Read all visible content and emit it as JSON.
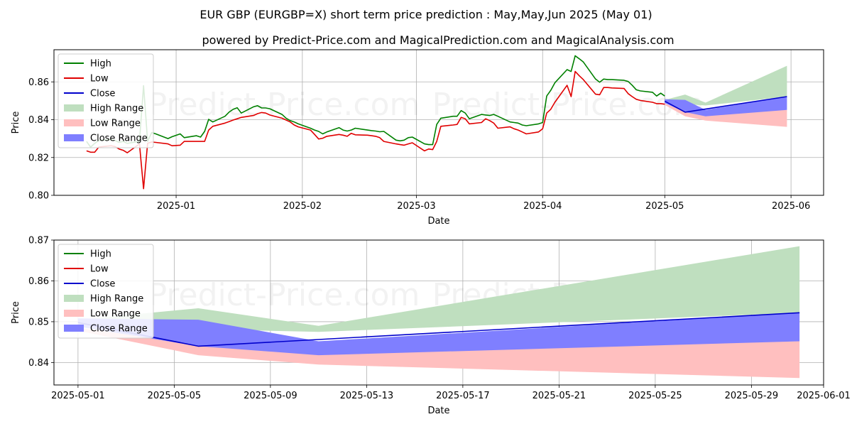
{
  "title": "EUR GBP (EURGBP=X) short term price prediction : May,May,Jun 2025 (May 01)",
  "subtitle": "powered by Predict-Price.com and MagicalPrediction.com and MagicalAnalysis.com",
  "watermark": "Predict-Price.com",
  "colors": {
    "high": "#008000",
    "low": "#e00000",
    "close": "#0000cc",
    "high_range": "#bfdfbf",
    "low_range": "#ffbfbf",
    "close_range": "#7f7fff",
    "grid": "#b0b0b0"
  },
  "legend": [
    "High",
    "Low",
    "Close",
    "High Range",
    "Low Range",
    "Close Range"
  ],
  "chart_data": [
    {
      "type": "line",
      "xlabel": "Date",
      "ylabel": "Price",
      "ylim": [
        0.8,
        0.877
      ],
      "xlim": [
        "2024-12-02",
        "2025-06-09"
      ],
      "yticks": [
        "0.80",
        "0.82",
        "0.84",
        "0.86"
      ],
      "xticks": [
        "2025-01",
        "2025-02",
        "2025-03",
        "2025-04",
        "2025-05",
        "2025-06"
      ],
      "legend_position": "top-left",
      "grid": true,
      "series": [
        {
          "name": "High",
          "x": [
            "2024-12-10",
            "2024-12-11",
            "2024-12-12",
            "2024-12-13",
            "2024-12-16",
            "2024-12-17",
            "2024-12-18",
            "2024-12-19",
            "2024-12-20",
            "2024-12-23",
            "2024-12-24",
            "2024-12-25",
            "2024-12-26",
            "2024-12-27",
            "2024-12-30",
            "2024-12-31",
            "2025-01-02",
            "2025-01-03",
            "2025-01-06",
            "2025-01-07",
            "2025-01-08",
            "2025-01-09",
            "2025-01-10",
            "2025-01-13",
            "2025-01-14",
            "2025-01-15",
            "2025-01-16",
            "2025-01-17",
            "2025-01-20",
            "2025-01-21",
            "2025-01-22",
            "2025-01-23",
            "2025-01-24",
            "2025-01-27",
            "2025-01-28",
            "2025-01-29",
            "2025-01-30",
            "2025-01-31",
            "2025-02-03",
            "2025-02-04",
            "2025-02-05",
            "2025-02-06",
            "2025-02-07",
            "2025-02-10",
            "2025-02-11",
            "2025-02-12",
            "2025-02-13",
            "2025-02-14",
            "2025-02-17",
            "2025-02-18",
            "2025-02-19",
            "2025-02-20",
            "2025-02-21",
            "2025-02-24",
            "2025-02-25",
            "2025-02-26",
            "2025-02-27",
            "2025-02-28",
            "2025-03-03",
            "2025-03-04",
            "2025-03-05",
            "2025-03-06",
            "2025-03-07",
            "2025-03-10",
            "2025-03-11",
            "2025-03-12",
            "2025-03-13",
            "2025-03-14",
            "2025-03-17",
            "2025-03-18",
            "2025-03-19",
            "2025-03-20",
            "2025-03-21",
            "2025-03-24",
            "2025-03-25",
            "2025-03-26",
            "2025-03-27",
            "2025-03-28",
            "2025-03-31",
            "2025-04-01",
            "2025-04-02",
            "2025-04-03",
            "2025-04-04",
            "2025-04-07",
            "2025-04-08",
            "2025-04-09",
            "2025-04-10",
            "2025-04-11",
            "2025-04-14",
            "2025-04-15",
            "2025-04-16",
            "2025-04-17",
            "2025-04-18",
            "2025-04-21",
            "2025-04-22",
            "2025-04-23",
            "2025-04-24",
            "2025-04-25",
            "2025-04-28",
            "2025-04-29",
            "2025-04-30",
            "2025-05-01"
          ],
          "values": [
            0.8285,
            0.8255,
            0.8275,
            0.829,
            0.8295,
            0.829,
            0.828,
            0.8285,
            0.8275,
            0.8285,
            0.858,
            0.8285,
            0.8332,
            0.8325,
            0.83,
            0.831,
            0.8325,
            0.8305,
            0.8315,
            0.8308,
            0.8338,
            0.8402,
            0.8388,
            0.8418,
            0.844,
            0.8455,
            0.8463,
            0.8435,
            0.8468,
            0.8474,
            0.8462,
            0.8462,
            0.8458,
            0.8428,
            0.8408,
            0.8395,
            0.8388,
            0.8378,
            0.8355,
            0.8345,
            0.8338,
            0.8325,
            0.8335,
            0.8358,
            0.8345,
            0.834,
            0.8345,
            0.8355,
            0.8345,
            0.8342,
            0.834,
            0.8336,
            0.8338,
            0.8292,
            0.8288,
            0.8292,
            0.8305,
            0.8308,
            0.8272,
            0.8268,
            0.8268,
            0.8375,
            0.8408,
            0.8418,
            0.8418,
            0.8448,
            0.8435,
            0.8405,
            0.8428,
            0.8425,
            0.8422,
            0.8428,
            0.8418,
            0.8388,
            0.8385,
            0.8382,
            0.8372,
            0.8368,
            0.8378,
            0.8385,
            0.8525,
            0.8555,
            0.8595,
            0.8665,
            0.8655,
            0.8738,
            0.8722,
            0.8705,
            0.8615,
            0.8598,
            0.8615,
            0.8612,
            0.8612,
            0.8608,
            0.8602,
            0.8582,
            0.8558,
            0.8552,
            0.8545,
            0.8525,
            0.854,
            0.8525
          ]
        },
        {
          "name": "Low",
          "x": [
            "2024-12-10",
            "2024-12-11",
            "2024-12-12",
            "2024-12-13",
            "2024-12-16",
            "2024-12-17",
            "2024-12-18",
            "2024-12-19",
            "2024-12-20",
            "2024-12-23",
            "2024-12-24",
            "2024-12-25",
            "2024-12-26",
            "2024-12-27",
            "2024-12-30",
            "2024-12-31",
            "2025-01-02",
            "2025-01-03",
            "2025-01-06",
            "2025-01-07",
            "2025-01-08",
            "2025-01-09",
            "2025-01-10",
            "2025-01-13",
            "2025-01-14",
            "2025-01-15",
            "2025-01-16",
            "2025-01-17",
            "2025-01-20",
            "2025-01-21",
            "2025-01-22",
            "2025-01-23",
            "2025-01-24",
            "2025-01-27",
            "2025-01-28",
            "2025-01-29",
            "2025-01-30",
            "2025-01-31",
            "2025-02-03",
            "2025-02-04",
            "2025-02-05",
            "2025-02-06",
            "2025-02-07",
            "2025-02-10",
            "2025-02-11",
            "2025-02-12",
            "2025-02-13",
            "2025-02-14",
            "2025-02-17",
            "2025-02-18",
            "2025-02-19",
            "2025-02-20",
            "2025-02-21",
            "2025-02-24",
            "2025-02-25",
            "2025-02-26",
            "2025-02-27",
            "2025-02-28",
            "2025-03-03",
            "2025-03-04",
            "2025-03-05",
            "2025-03-06",
            "2025-03-07",
            "2025-03-10",
            "2025-03-11",
            "2025-03-12",
            "2025-03-13",
            "2025-03-14",
            "2025-03-17",
            "2025-03-18",
            "2025-03-19",
            "2025-03-20",
            "2025-03-21",
            "2025-03-24",
            "2025-03-25",
            "2025-03-26",
            "2025-03-27",
            "2025-03-28",
            "2025-03-31",
            "2025-04-01",
            "2025-04-02",
            "2025-04-03",
            "2025-04-04",
            "2025-04-07",
            "2025-04-08",
            "2025-04-09",
            "2025-04-10",
            "2025-04-11",
            "2025-04-14",
            "2025-04-15",
            "2025-04-16",
            "2025-04-17",
            "2025-04-18",
            "2025-04-21",
            "2025-04-22",
            "2025-04-23",
            "2025-04-24",
            "2025-04-25",
            "2025-04-28",
            "2025-04-29",
            "2025-04-30",
            "2025-05-01"
          ],
          "values": [
            0.8235,
            0.8228,
            0.8228,
            0.8255,
            0.8262,
            0.8258,
            0.8245,
            0.8238,
            0.8225,
            0.8272,
            0.8035,
            0.8275,
            0.8282,
            0.828,
            0.8272,
            0.8262,
            0.8265,
            0.8285,
            0.8285,
            0.8285,
            0.8285,
            0.8345,
            0.8365,
            0.8382,
            0.839,
            0.8398,
            0.8405,
            0.8412,
            0.8422,
            0.8432,
            0.8438,
            0.8435,
            0.8425,
            0.8408,
            0.8398,
            0.8388,
            0.8372,
            0.8362,
            0.8345,
            0.8322,
            0.8298,
            0.8302,
            0.8312,
            0.8322,
            0.8318,
            0.8312,
            0.8328,
            0.832,
            0.8318,
            0.8315,
            0.8312,
            0.8305,
            0.8285,
            0.8272,
            0.8268,
            0.8265,
            0.8272,
            0.8278,
            0.8235,
            0.8245,
            0.8242,
            0.8285,
            0.8365,
            0.8372,
            0.8375,
            0.8412,
            0.8405,
            0.8378,
            0.8385,
            0.8405,
            0.8395,
            0.8382,
            0.8355,
            0.8362,
            0.8352,
            0.8345,
            0.8335,
            0.8325,
            0.8335,
            0.8352,
            0.8435,
            0.8455,
            0.8492,
            0.8582,
            0.8522,
            0.8655,
            0.8632,
            0.8612,
            0.8535,
            0.8532,
            0.857,
            0.857,
            0.8568,
            0.8565,
            0.8538,
            0.8522,
            0.8508,
            0.8502,
            0.8492,
            0.8485,
            0.8485,
            0.8482
          ]
        },
        {
          "name": "High Range",
          "kind": "band",
          "x": [
            "2025-05-01",
            "2025-05-06",
            "2025-05-11",
            "2025-05-31"
          ],
          "upper": [
            0.8505,
            0.8533,
            0.849,
            0.8685
          ],
          "lower": [
            0.8495,
            0.8482,
            0.8475,
            0.8522
          ]
        },
        {
          "name": "Low Range",
          "kind": "band",
          "x": [
            "2025-05-01",
            "2025-05-06",
            "2025-05-11",
            "2025-05-31"
          ],
          "upper": [
            0.8485,
            0.8445,
            0.8432,
            0.8452
          ],
          "lower": [
            0.8478,
            0.8418,
            0.8395,
            0.8362
          ]
        },
        {
          "name": "Close Range",
          "kind": "band",
          "x": [
            "2025-05-01",
            "2025-05-06",
            "2025-05-11",
            "2025-05-31"
          ],
          "upper": [
            0.8508,
            0.8505,
            0.8452,
            0.8522
          ],
          "lower": [
            0.8488,
            0.844,
            0.8418,
            0.8452
          ]
        },
        {
          "name": "Close",
          "x": [
            "2025-05-01",
            "2025-05-06",
            "2025-05-31"
          ],
          "values": [
            0.8498,
            0.844,
            0.8522
          ]
        }
      ]
    },
    {
      "type": "line",
      "xlabel": "Date",
      "ylabel": "Price",
      "ylim": [
        0.8345,
        0.87
      ],
      "xlim": [
        "2025-04-30",
        "2025-06-01"
      ],
      "yticks": [
        "0.84",
        "0.85",
        "0.86",
        "0.87"
      ],
      "xticks": [
        "2025-05-01",
        "2025-05-05",
        "2025-05-09",
        "2025-05-13",
        "2025-05-17",
        "2025-05-21",
        "2025-05-25",
        "2025-05-29",
        "2025-06-01"
      ],
      "legend_position": "top-left",
      "grid": true,
      "series": [
        {
          "name": "High Range",
          "kind": "band",
          "x": [
            "2025-05-01",
            "2025-05-06",
            "2025-05-11",
            "2025-05-31"
          ],
          "upper": [
            0.8505,
            0.8533,
            0.849,
            0.8685
          ],
          "lower": [
            0.8495,
            0.8482,
            0.8475,
            0.8522
          ]
        },
        {
          "name": "Low Range",
          "kind": "band",
          "x": [
            "2025-05-01",
            "2025-05-06",
            "2025-05-11",
            "2025-05-31"
          ],
          "upper": [
            0.8485,
            0.8445,
            0.8432,
            0.8452
          ],
          "lower": [
            0.8478,
            0.8418,
            0.8395,
            0.8362
          ]
        },
        {
          "name": "Close Range",
          "kind": "band",
          "x": [
            "2025-05-01",
            "2025-05-06",
            "2025-05-11",
            "2025-05-31"
          ],
          "upper": [
            0.8508,
            0.8505,
            0.8452,
            0.8522
          ],
          "lower": [
            0.8488,
            0.844,
            0.8418,
            0.8452
          ]
        },
        {
          "name": "Close",
          "x": [
            "2025-05-01",
            "2025-05-06",
            "2025-05-31"
          ],
          "values": [
            0.8498,
            0.844,
            0.8522
          ]
        }
      ]
    }
  ]
}
